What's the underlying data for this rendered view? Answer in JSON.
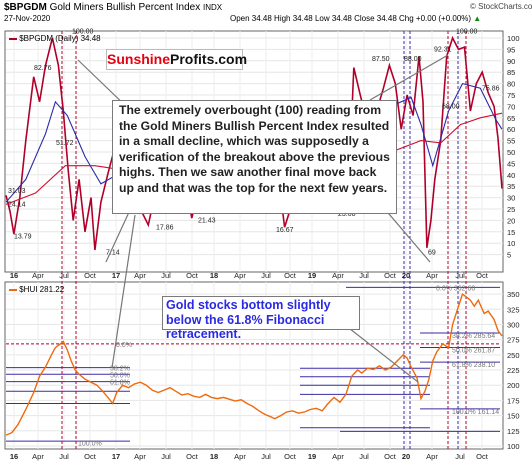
{
  "header": {
    "symbol": "$BPGDM",
    "name": "Gold Miners Bullish Percent Index",
    "exchange": "INDX",
    "date": "27-Nov-2020",
    "ohlc": "Open 34.48  High 34.48  Low 34.48  Close 34.48  Chg +0.00 (+0.00%)",
    "up_arrow": "▲",
    "source": "© StockCharts.com",
    "top_legend": "$BPGDM (Daily) 34.48",
    "bottom_legend": "$HUI 281.22"
  },
  "logo": {
    "part1": "Sunshine",
    "part2": "Profits.com"
  },
  "annotations": {
    "callout1": "The extremely overbought (100) reading from the Gold Miners Bullish Percent Index resulted in a small decline, which was supposedly a verification of the breakout above the previous highs. Then we saw another final move back up and that was the top for the next few years.",
    "callout2": "Gold stocks bottom slightly below the 61.8% Fibonacci retracement."
  },
  "x_axis_labels": [
    "16",
    "Apr",
    "Jul",
    "Oct",
    "17",
    "Apr",
    "Jul",
    "Oct",
    "18",
    "Apr",
    "Jul",
    "Oct",
    "19",
    "Apr",
    "Jul",
    "Oct",
    "20",
    "Apr",
    "Jul",
    "Oct"
  ],
  "colors": {
    "price": "#b0002a",
    "ma_fast": "#2a2aa8",
    "ma_slow": "#d01030",
    "hui": "#ee6a0c",
    "fib": "#3b2ba6",
    "callout2_text": "#2a2ae0",
    "logo_red": "#e8000e"
  },
  "chart_data": [
    {
      "type": "line",
      "title": "$BPGDM (Daily) 34.48",
      "ylim": [
        0,
        100
      ],
      "yticks": [
        5,
        10,
        15,
        20,
        25,
        30,
        35,
        40,
        45,
        50,
        55,
        60,
        65,
        70,
        75,
        80,
        85,
        90,
        95,
        100
      ],
      "point_labels": [
        "82.76",
        "100.00",
        "51.72",
        "31.03",
        "24.14",
        "13.79",
        "7.14",
        "17.86",
        "21.43",
        "32.14",
        "16.67",
        "23.08",
        "87.50",
        "88.00",
        "92.31",
        "100.00",
        "68.00",
        "75.86",
        "69"
      ],
      "series": [
        {
          "values": [
            [
              0,
              31
            ],
            [
              4,
              24
            ],
            [
              8,
              14
            ],
            [
              14,
              30
            ],
            [
              20,
              55
            ],
            [
              28,
              83
            ],
            [
              34,
              72
            ],
            [
              40,
              88
            ],
            [
              47,
              100
            ],
            [
              53,
              88
            ],
            [
              58,
              68
            ],
            [
              63,
              42
            ],
            [
              68,
              20
            ],
            [
              74,
              38
            ],
            [
              80,
              15
            ],
            [
              86,
              30
            ],
            [
              90,
              7
            ],
            [
              96,
              28
            ],
            [
              104,
              42
            ],
            [
              112,
              55
            ],
            [
              120,
              48
            ],
            [
              128,
              40
            ],
            [
              136,
              25
            ],
            [
              144,
              18
            ],
            [
              150,
              30
            ],
            [
              158,
              38
            ],
            [
              166,
              45
            ],
            [
              174,
              48
            ],
            [
              182,
              35
            ],
            [
              188,
              21
            ],
            [
              194,
              32
            ],
            [
              200,
              38
            ],
            [
              208,
              45
            ],
            [
              214,
              40
            ],
            [
              220,
              32
            ],
            [
              228,
              38
            ],
            [
              236,
              44
            ],
            [
              244,
              38
            ],
            [
              252,
              26
            ],
            [
              260,
              40
            ],
            [
              268,
              52
            ],
            [
              276,
              38
            ],
            [
              282,
              17
            ],
            [
              290,
              28
            ],
            [
              298,
              32
            ],
            [
              306,
              40
            ],
            [
              314,
              44
            ],
            [
              322,
              42
            ],
            [
              330,
              55
            ],
            [
              336,
              35
            ],
            [
              342,
              23
            ],
            [
              348,
              45
            ],
            [
              352,
              87
            ],
            [
              358,
              76
            ],
            [
              366,
              62
            ],
            [
              374,
              66
            ],
            [
              382,
              78
            ],
            [
              388,
              88
            ],
            [
              394,
              80
            ],
            [
              400,
              60
            ],
            [
              406,
              75
            ],
            [
              412,
              66
            ],
            [
              418,
              92
            ],
            [
              422,
              72
            ],
            [
              426,
              8
            ],
            [
              430,
              20
            ],
            [
              434,
              38
            ],
            [
              440,
              55
            ],
            [
              446,
              92
            ],
            [
              452,
              100
            ],
            [
              458,
              95
            ],
            [
              464,
              96
            ],
            [
              470,
              68
            ],
            [
              476,
              80
            ],
            [
              482,
              85
            ],
            [
              488,
              76
            ],
            [
              494,
              70
            ],
            [
              498,
              56
            ],
            [
              502,
              34
            ]
          ]
        },
        {
          "values": [
            [
              0,
              28
            ],
            [
              20,
              38
            ],
            [
              40,
              58
            ],
            [
              50,
              72
            ],
            [
              62,
              66
            ],
            [
              80,
              48
            ],
            [
              96,
              36
            ],
            [
              112,
              40
            ],
            [
              130,
              38
            ],
            [
              150,
              30
            ],
            [
              170,
              38
            ],
            [
              190,
              30
            ],
            [
              210,
              35
            ],
            [
              230,
              37
            ],
            [
              250,
              33
            ],
            [
              270,
              38
            ],
            [
              290,
              30
            ],
            [
              310,
              36
            ],
            [
              330,
              40
            ],
            [
              350,
              52
            ],
            [
              370,
              62
            ],
            [
              390,
              70
            ],
            [
              410,
              74
            ],
            [
              420,
              62
            ],
            [
              432,
              44
            ],
            [
              448,
              68
            ],
            [
              462,
              80
            ],
            [
              480,
              78
            ],
            [
              496,
              64
            ],
            [
              502,
              60
            ]
          ]
        },
        {
          "values": [
            [
              0,
              27
            ],
            [
              30,
              32
            ],
            [
              60,
              44
            ],
            [
              90,
              44
            ],
            [
              120,
              42
            ],
            [
              150,
              38
            ],
            [
              180,
              34
            ],
            [
              210,
              33
            ],
            [
              240,
              34
            ],
            [
              270,
              35
            ],
            [
              300,
              34
            ],
            [
              330,
              36
            ],
            [
              360,
              42
            ],
            [
              390,
              50
            ],
            [
              420,
              55
            ],
            [
              440,
              54
            ],
            [
              460,
              62
            ],
            [
              480,
              65
            ],
            [
              502,
              67
            ]
          ]
        }
      ]
    },
    {
      "type": "line",
      "title": "$HUI 281.22",
      "ylim": [
        100,
        360
      ],
      "yticks": [
        100,
        125,
        150,
        175,
        200,
        225,
        250,
        275,
        300,
        325,
        350
      ],
      "series": [
        {
          "name": "$HUI",
          "values": [
            [
              0,
              118
            ],
            [
              6,
              122
            ],
            [
              12,
              135
            ],
            [
              20,
              160
            ],
            [
              28,
              188
            ],
            [
              34,
              215
            ],
            [
              40,
              230
            ],
            [
              46,
              250
            ],
            [
              50,
              262
            ],
            [
              55,
              268
            ],
            [
              58,
              272
            ],
            [
              62,
              258
            ],
            [
              66,
              240
            ],
            [
              70,
              225
            ],
            [
              74,
              218
            ],
            [
              80,
              210
            ],
            [
              86,
              205
            ],
            [
              92,
              200
            ],
            [
              98,
              190
            ],
            [
              104,
              178
            ],
            [
              108,
              170
            ],
            [
              112,
              188
            ],
            [
              118,
              200
            ],
            [
              124,
              196
            ],
            [
              130,
              202
            ],
            [
              136,
              205
            ],
            [
              142,
              200
            ],
            [
              148,
              192
            ],
            [
              154,
              188
            ],
            [
              160,
              192
            ],
            [
              166,
              196
            ],
            [
              172,
              190
            ],
            [
              178,
              184
            ],
            [
              184,
              186
            ],
            [
              190,
              182
            ],
            [
              196,
              180
            ],
            [
              202,
              185
            ],
            [
              208,
              180
            ],
            [
              214,
              178
            ],
            [
              220,
              180
            ],
            [
              226,
              177
            ],
            [
              232,
              174
            ],
            [
              238,
              176
            ],
            [
              244,
              170
            ],
            [
              250,
              165
            ],
            [
              256,
              158
            ],
            [
              262,
              152
            ],
            [
              268,
              148
            ],
            [
              272,
              145
            ],
            [
              278,
              150
            ],
            [
              284,
              156
            ],
            [
              290,
              158
            ],
            [
              296,
              154
            ],
            [
              302,
              156
            ],
            [
              308,
              160
            ],
            [
              314,
              162
            ],
            [
              320,
              158
            ],
            [
              326,
              170
            ],
            [
              332,
              180
            ],
            [
              338,
              172
            ],
            [
              344,
              185
            ],
            [
              350,
              215
            ],
            [
              356,
              225
            ],
            [
              360,
              220
            ],
            [
              366,
              228
            ],
            [
              372,
              226
            ],
            [
              378,
              232
            ],
            [
              384,
              225
            ],
            [
              390,
              230
            ],
            [
              396,
              240
            ],
            [
              402,
              250
            ],
            [
              406,
              245
            ],
            [
              410,
              230
            ],
            [
              416,
              212
            ],
            [
              420,
              178
            ],
            [
              424,
              190
            ],
            [
              428,
              210
            ],
            [
              432,
              240
            ],
            [
              436,
              255
            ],
            [
              442,
              268
            ],
            [
              448,
              262
            ],
            [
              452,
              300
            ],
            [
              458,
              330
            ],
            [
              462,
              350
            ],
            [
              466,
              345
            ],
            [
              470,
              340
            ],
            [
              474,
              330
            ],
            [
              478,
              340
            ],
            [
              484,
              318
            ],
            [
              488,
              322
            ],
            [
              494,
              308
            ],
            [
              498,
              290
            ],
            [
              502,
              281
            ]
          ]
        }
      ],
      "fib_levels": [
        "0.0%",
        "38.2% 285.64",
        "50.0% 261.87",
        "61.8% 238.10",
        "100.0% 161.14",
        "100.0%",
        "38.2%",
        "50.0%",
        "61.8%",
        "0.0% 362.60"
      ]
    }
  ]
}
